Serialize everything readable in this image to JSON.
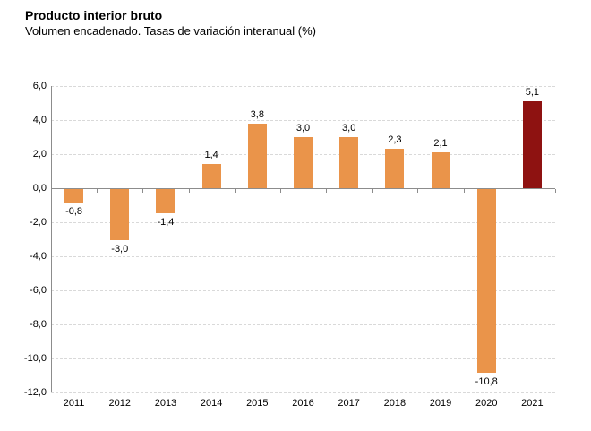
{
  "header": {
    "title": "Producto interior bruto",
    "subtitle": "Volumen encadenado. Tasas de variación interanual (%)"
  },
  "chart_data": {
    "type": "bar",
    "title": "Producto interior bruto",
    "subtitle": "Volumen encadenado. Tasas de variación interanual (%)",
    "xlabel": "",
    "ylabel": "",
    "categories": [
      "2011",
      "2012",
      "2013",
      "2014",
      "2015",
      "2016",
      "2017",
      "2018",
      "2019",
      "2020",
      "2021"
    ],
    "values": [
      -0.8,
      -3.0,
      -1.4,
      1.4,
      3.8,
      3.0,
      3.0,
      2.3,
      2.1,
      -10.8,
      5.1
    ],
    "value_labels": [
      "-0,8",
      "-3,0",
      "-1,4",
      "1,4",
      "3,8",
      "3,0",
      "3,0",
      "2,3",
      "2,1",
      "-10,8",
      "5,1"
    ],
    "ylim": [
      -12,
      6
    ],
    "ytick_step": 2,
    "ytick_labels": [
      "6,0",
      "4,0",
      "2,0",
      "0,0",
      "-2,0",
      "-4,0",
      "-6,0",
      "-8,0",
      "-10,0",
      "-12,0"
    ],
    "grid": true,
    "legend": false,
    "colors": {
      "bar": "#EA944A",
      "highlight": "#8E1211",
      "axis": "#8C8C8C",
      "gridline": "#D9D9D9",
      "text": "#000000"
    },
    "highlight_index": 10
  }
}
